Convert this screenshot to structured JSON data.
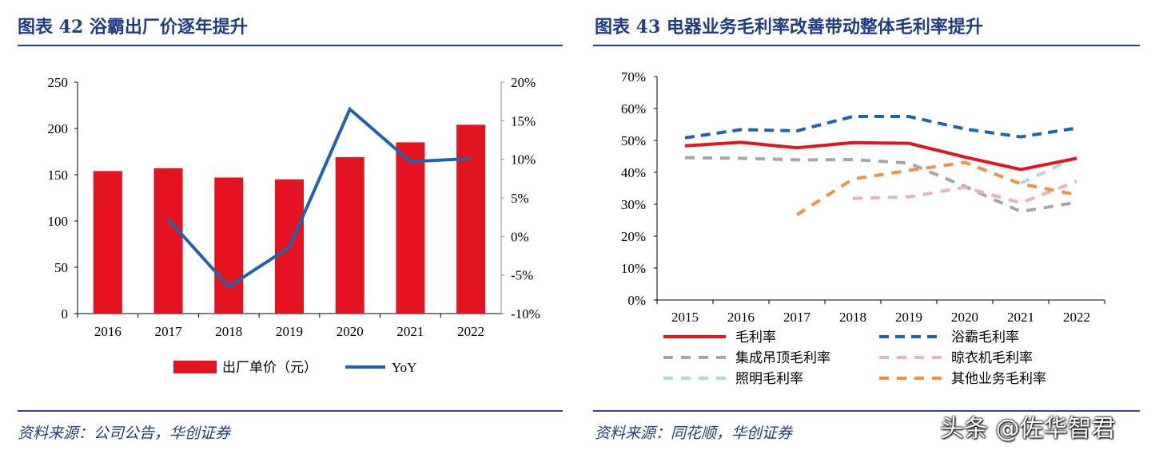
{
  "left": {
    "title": "图表 42   浴霸出厂价逐年提升",
    "source": "资料来源：公司公告，华创证券"
  },
  "right": {
    "title": "图表 43   电器业务毛利率改善带动整体毛利率提升",
    "source": "资料来源：同花顺，华创证券"
  },
  "watermark": "头条 @佐华智君",
  "chart_data": [
    {
      "type": "bar",
      "categories": [
        "2016",
        "2017",
        "2018",
        "2019",
        "2020",
        "2021",
        "2022"
      ],
      "series": [
        {
          "name": "出厂单价（元）",
          "kind": "bar",
          "axis": "left",
          "color": "#e3141f",
          "values": [
            154,
            157,
            147,
            145,
            169,
            185,
            204
          ]
        },
        {
          "name": "YoY",
          "kind": "line",
          "axis": "right",
          "color": "#1f63b0",
          "values": [
            null,
            2.2,
            -6.5,
            -1.4,
            16.5,
            9.7,
            10.1
          ]
        }
      ],
      "ylim": [
        0,
        250
      ],
      "yticks": [
        "0",
        "50",
        "100",
        "150",
        "200",
        "250"
      ],
      "y2lim": [
        -10,
        20
      ],
      "y2ticks": [
        "-10%",
        "-5%",
        "0%",
        "5%",
        "10%",
        "15%",
        "20%"
      ],
      "legend": "bottom"
    },
    {
      "type": "line",
      "categories": [
        "2015",
        "2016",
        "2017",
        "2018",
        "2019",
        "2020",
        "2021",
        "2022"
      ],
      "ylim": [
        0,
        70
      ],
      "yticks": [
        "0%",
        "10%",
        "20%",
        "30%",
        "40%",
        "50%",
        "60%",
        "70%"
      ],
      "legend": "bottom",
      "series": [
        {
          "name": "毛利率",
          "color": "#e3141f",
          "dash": "",
          "values": [
            48.3,
            49.4,
            47.7,
            49.3,
            49.1,
            44.8,
            40.9,
            44.4
          ]
        },
        {
          "name": "浴霸毛利率",
          "color": "#1f63b0",
          "dash": "12,8",
          "values": [
            50.8,
            53.4,
            53.0,
            57.5,
            57.5,
            53.6,
            51.1,
            53.9
          ]
        },
        {
          "name": "集成吊顶毛利率",
          "color": "#a6a6a6",
          "dash": "12,10",
          "values": [
            44.6,
            44.4,
            43.9,
            44.0,
            42.9,
            35.6,
            27.7,
            30.6
          ]
        },
        {
          "name": "晾衣机毛利率",
          "color": "#e8b4b8",
          "dash": "12,10",
          "values": [
            null,
            null,
            null,
            31.8,
            32.3,
            35.3,
            30.4,
            37.2
          ]
        },
        {
          "name": "照明毛利率",
          "color": "#a9dbe6",
          "dash": "12,10",
          "values": [
            null,
            null,
            null,
            null,
            null,
            null,
            36.6,
            44.8
          ]
        },
        {
          "name": "其他业务毛利率",
          "color": "#f5913e",
          "dash": "12,10",
          "values": [
            null,
            null,
            26.7,
            37.9,
            40.6,
            43.1,
            36.4,
            33.0
          ]
        }
      ]
    }
  ]
}
